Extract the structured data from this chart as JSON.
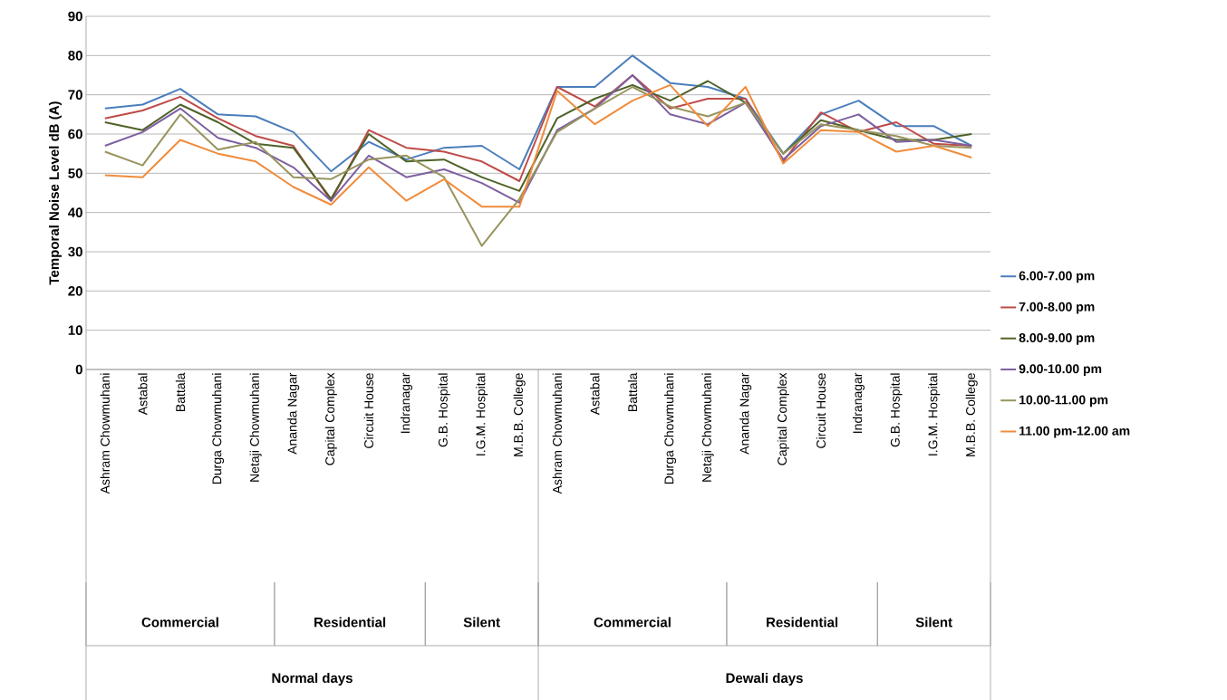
{
  "chart_data": {
    "type": "line",
    "ylabel": "Temporal Noise Level dB (A)",
    "categories": [
      "Ashram Chowmuhani",
      "Astabal",
      "Battala",
      "Durga Chowmuhani",
      "Netaji Chowmuhani",
      "Ananda Nagar",
      "Capital Complex",
      "Circuit House",
      "Indranagar",
      "G.B. Hospital",
      "I.G.M. Hospital",
      "M.B.B. College",
      "Ashram Chowmuhani",
      "Astabal",
      "Battala",
      "Durga Chowmuhani",
      "Netaji Chowmuhani",
      "Ananda Nagar",
      "Capital Complex",
      "Circuit House",
      "Indranagar",
      "G.B. Hospital",
      "I.G.M. Hospital",
      "M.B.B. College"
    ],
    "series": [
      {
        "name": "6.00-7.00 pm",
        "color": "#4a7ebb",
        "values": [
          66.5,
          67.5,
          71.5,
          65,
          64.5,
          60.5,
          50.5,
          58,
          53.5,
          56.5,
          57,
          51,
          72,
          72,
          80,
          73,
          72,
          69,
          55,
          65,
          68.5,
          62,
          62,
          57
        ]
      },
      {
        "name": "7.00-8.00 pm",
        "color": "#be4b48",
        "values": [
          64,
          66,
          69.5,
          64,
          59.5,
          57,
          43,
          61,
          56.5,
          55.5,
          53,
          48,
          72,
          67,
          75,
          66.5,
          69,
          69,
          53,
          65.5,
          60.5,
          63,
          57.5,
          57
        ]
      },
      {
        "name": "8.00-9.00 pm",
        "color": "#4f6228",
        "values": [
          63,
          61,
          67.5,
          63,
          57.5,
          56.5,
          43.5,
          60,
          53,
          53.5,
          49,
          45.5,
          64,
          69,
          72.5,
          68.5,
          73.5,
          68,
          55,
          63.5,
          61,
          58.5,
          58.5,
          60
        ]
      },
      {
        "name": "9.00-10.00 pm",
        "color": "#7d5fa0",
        "values": [
          57,
          60.5,
          66.5,
          59,
          56.5,
          51.5,
          43,
          54.5,
          49,
          51,
          47.5,
          42.5,
          61,
          66.5,
          75,
          65,
          62.5,
          68,
          53.5,
          62,
          65,
          58,
          58.5,
          57
        ]
      },
      {
        "name": "10.00-11.00 pm",
        "color": "#98945e",
        "values": [
          55.5,
          52,
          65,
          56,
          58,
          49,
          48.5,
          53.5,
          54.5,
          49,
          31.5,
          43.5,
          60.5,
          66.5,
          72,
          67,
          64.5,
          68,
          55,
          62.5,
          61,
          59.5,
          57,
          56.5
        ]
      },
      {
        "name": "11.00 pm-12.00 am",
        "color": "#f08c3c",
        "values": [
          49.5,
          49,
          58.5,
          55,
          53,
          46.5,
          42,
          51.5,
          43,
          48.5,
          41.5,
          41.5,
          71,
          62.5,
          68.5,
          72.5,
          62,
          72,
          52.5,
          61,
          60.5,
          55.5,
          57,
          54
        ]
      }
    ],
    "ylim": [
      0,
      90
    ],
    "yticks": [
      0,
      10,
      20,
      30,
      40,
      50,
      60,
      70,
      80,
      90
    ],
    "grid": "y",
    "legend": "right",
    "marker": "none",
    "line_style": "solid",
    "annotations": [
      "Commercial",
      "Residential",
      "Silent",
      "Commercial",
      "Residential",
      "Silent",
      "Normal days",
      "Dewali days"
    ]
  }
}
